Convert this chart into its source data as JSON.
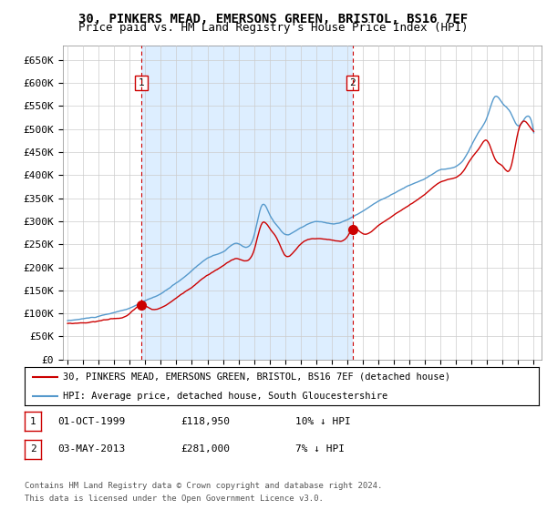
{
  "title": "30, PINKERS MEAD, EMERSONS GREEN, BRISTOL, BS16 7EF",
  "subtitle": "Price paid vs. HM Land Registry's House Price Index (HPI)",
  "xlim_start": 1995.0,
  "xlim_end": 2025.5,
  "ylim": [
    0,
    680000
  ],
  "yticks": [
    0,
    50000,
    100000,
    150000,
    200000,
    250000,
    300000,
    350000,
    400000,
    450000,
    500000,
    550000,
    600000,
    650000
  ],
  "ytick_labels": [
    "£0",
    "£50K",
    "£100K",
    "£150K",
    "£200K",
    "£250K",
    "£300K",
    "£350K",
    "£400K",
    "£450K",
    "£500K",
    "£550K",
    "£600K",
    "£650K"
  ],
  "transaction1_x": 1999.75,
  "transaction1_y": 118950,
  "transaction1_label": "1",
  "transaction2_x": 2013.33,
  "transaction2_y": 281000,
  "transaction2_label": "2",
  "red_line_color": "#cc0000",
  "blue_line_color": "#5599cc",
  "vline_color": "#cc0000",
  "fill_color": "#ddeeff",
  "legend_label_red": "30, PINKERS MEAD, EMERSONS GREEN, BRISTOL, BS16 7EF (detached house)",
  "legend_label_blue": "HPI: Average price, detached house, South Gloucestershire",
  "footer1": "Contains HM Land Registry data © Crown copyright and database right 2024.",
  "footer2": "This data is licensed under the Open Government Licence v3.0.",
  "table_row1": [
    "1",
    "01-OCT-1999",
    "£118,950",
    "10% ↓ HPI"
  ],
  "table_row2": [
    "2",
    "03-MAY-2013",
    "£281,000",
    "7% ↓ HPI"
  ],
  "background_color": "#ffffff",
  "grid_color": "#cccccc",
  "title_fontsize": 10,
  "subtitle_fontsize": 9,
  "axis_fontsize": 8,
  "xticks": [
    1995,
    1996,
    1997,
    1998,
    1999,
    2000,
    2001,
    2002,
    2003,
    2004,
    2005,
    2006,
    2007,
    2008,
    2009,
    2010,
    2011,
    2012,
    2013,
    2014,
    2015,
    2016,
    2017,
    2018,
    2019,
    2020,
    2021,
    2022,
    2023,
    2024,
    2025
  ]
}
